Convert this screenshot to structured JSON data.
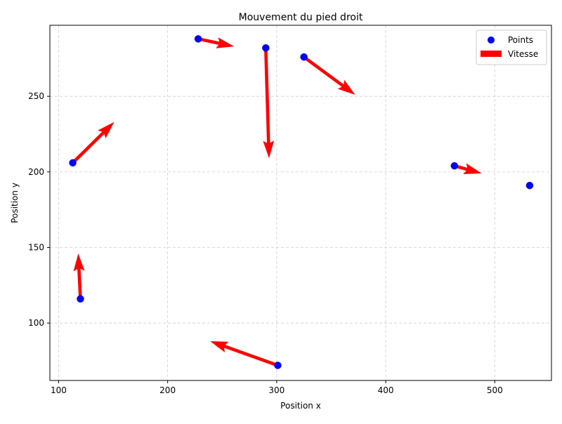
{
  "colors": {
    "points": "#0000ff",
    "arrows": "#ff0000",
    "grid": "#b0b0b0",
    "axes": "#000000"
  },
  "chart_data": {
    "type": "scatter",
    "title": "Mouvement du pied droit",
    "xlabel": "Position x",
    "ylabel": "Position y",
    "xlim": [
      92,
      552
    ],
    "ylim": [
      62,
      297
    ],
    "xticks": [
      100,
      200,
      300,
      400,
      500
    ],
    "yticks": [
      100,
      150,
      200,
      250
    ],
    "grid": true,
    "grid_style": "dashed",
    "legend_position": "top-right",
    "legend": [
      {
        "label": "Points",
        "marker": "circle",
        "color": "#0000ff"
      },
      {
        "label": "Vitesse",
        "marker": "arrow",
        "color": "#ff0000"
      }
    ],
    "series": [
      {
        "name": "Points",
        "x": [
          113,
          120,
          228,
          290,
          301,
          325,
          463,
          532
        ],
        "y": [
          206,
          116,
          288,
          282,
          72,
          276,
          204,
          191
        ]
      }
    ],
    "vectors": {
      "name": "Vitesse",
      "data": [
        {
          "x": 113,
          "y": 206,
          "dx": 38,
          "dy": 27
        },
        {
          "x": 120,
          "y": 116,
          "dx": -2,
          "dy": 30
        },
        {
          "x": 228,
          "y": 288,
          "dx": 33,
          "dy": -5
        },
        {
          "x": 290,
          "y": 282,
          "dx": 3,
          "dy": -73
        },
        {
          "x": 301,
          "y": 72,
          "dx": -62,
          "dy": 16
        },
        {
          "x": 325,
          "y": 276,
          "dx": 47,
          "dy": -25
        },
        {
          "x": 463,
          "y": 204,
          "dx": 25,
          "dy": -5
        }
      ]
    }
  }
}
